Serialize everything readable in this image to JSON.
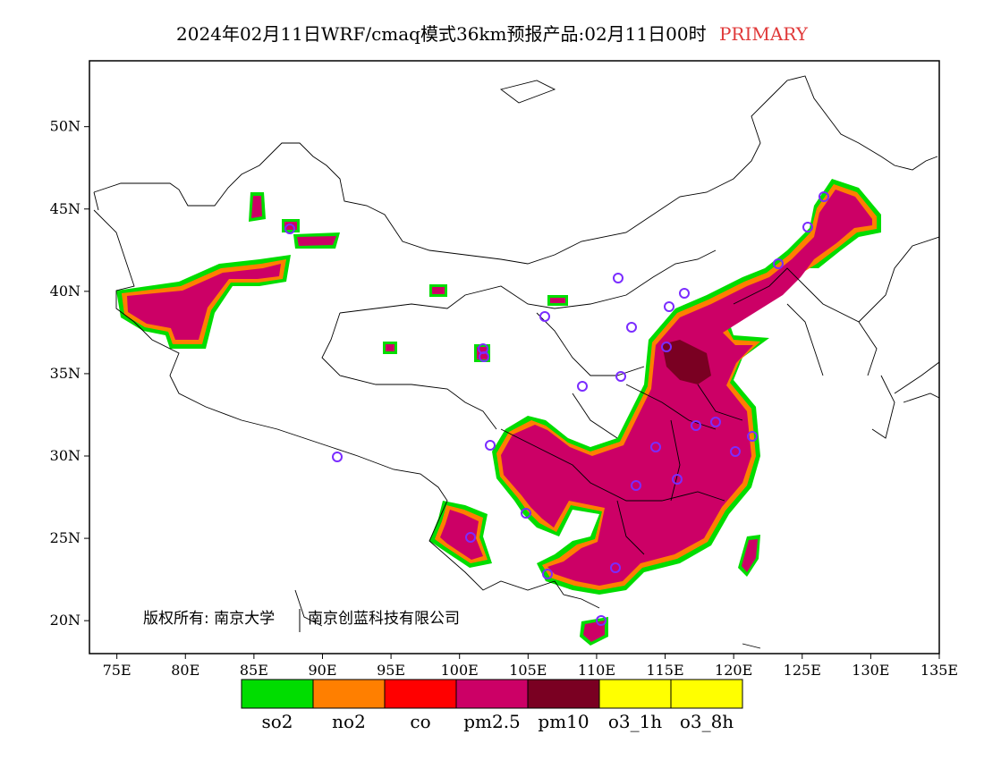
{
  "title": {
    "main": "2024年02月11日WRF/cmaq模式36km预报产品:02月11日00时",
    "mode": "PRIMARY",
    "mode_color": "#e03a3a"
  },
  "axes": {
    "x_ticks": [
      "75E",
      "80E",
      "85E",
      "90E",
      "95E",
      "100E",
      "105E",
      "110E",
      "115E",
      "120E",
      "125E",
      "130E",
      "135E"
    ],
    "y_ticks": [
      "50N",
      "45N",
      "40N",
      "35N",
      "30N",
      "25N",
      "20N"
    ],
    "lon_range": [
      73,
      135
    ],
    "lat_range": [
      18,
      54
    ]
  },
  "copyright": {
    "part1": "版权所有: 南京大学",
    "part2": "南京创蓝科技有限公司"
  },
  "legend": [
    {
      "label": "so2",
      "color": "#00dd00"
    },
    {
      "label": "no2",
      "color": "#ff7f00"
    },
    {
      "label": "co",
      "color": "#ff0000"
    },
    {
      "label": "pm2.5",
      "color": "#cc0066"
    },
    {
      "label": "pm10",
      "color": "#7a0022"
    },
    {
      "label": "o3_1h",
      "color": "#ffff00"
    },
    {
      "label": "o3_8h",
      "color": "#ffff00"
    }
  ],
  "colors": {
    "pm25": "#cc0066",
    "pm10": "#7a0022",
    "no2": "#ff7f00",
    "so2": "#00dd00",
    "co": "#ff0000",
    "station_circle": "#7a2cff"
  }
}
